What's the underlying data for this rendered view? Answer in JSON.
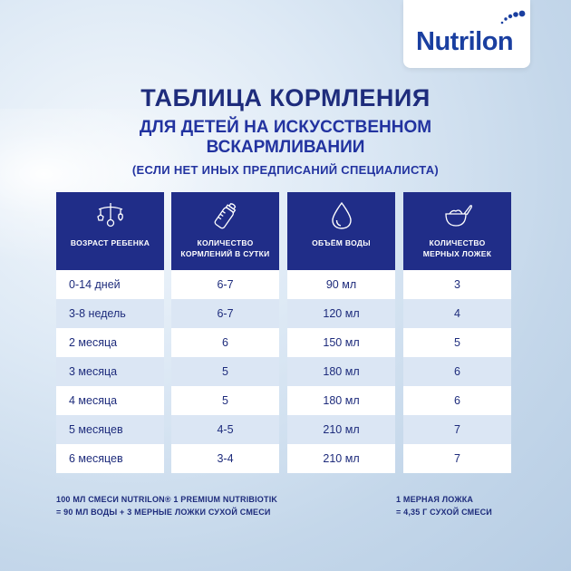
{
  "brand": {
    "logo_text": "Nutrilon"
  },
  "heading": {
    "title": "ТАБЛИЦА КОРМЛЕНИЯ",
    "subtitle_line1": "ДЛЯ ДЕТЕЙ НА ИСКУССТВЕННОМ",
    "subtitle_line2": "ВСКАРМЛИВАНИИ",
    "note": "(ЕСЛИ НЕТ ИНЫХ ПРЕДПИСАНИЙ СПЕЦИАЛИСТА)"
  },
  "table": {
    "columns": [
      {
        "icon": "baby-mobile-icon",
        "label_line1": "ВОЗРАСТ РЕБЕНКА",
        "label_line2": ""
      },
      {
        "icon": "baby-bottle-icon",
        "label_line1": "КОЛИЧЕСТВО",
        "label_line2": "КОРМЛЕНИЙ В СУТКИ"
      },
      {
        "icon": "water-drop-icon",
        "label_line1": "ОБЪЁМ ВОДЫ",
        "label_line2": ""
      },
      {
        "icon": "measuring-spoon-icon",
        "label_line1": "КОЛИЧЕСТВО",
        "label_line2": "МЕРНЫХ ЛОЖЕК"
      }
    ],
    "rows": [
      {
        "age": "0-14 дней",
        "feedings": "6-7",
        "water": "90 мл",
        "scoops": "3"
      },
      {
        "age": "3-8 недель",
        "feedings": "6-7",
        "water": "120 мл",
        "scoops": "4"
      },
      {
        "age": "2 месяца",
        "feedings": "6",
        "water": "150 мл",
        "scoops": "5"
      },
      {
        "age": "3 месяца",
        "feedings": "5",
        "water": "180 мл",
        "scoops": "6"
      },
      {
        "age": "4 месяца",
        "feedings": "5",
        "water": "180 мл",
        "scoops": "6"
      },
      {
        "age": "5 месяцев",
        "feedings": "4-5",
        "water": "210 мл",
        "scoops": "7"
      },
      {
        "age": "6 месяцев",
        "feedings": "3-4",
        "water": "210 мл",
        "scoops": "7"
      }
    ]
  },
  "footer": {
    "left_line1": "100 МЛ СМЕСИ NUTRILON® 1 PREMIUM NUTRIBIOTIK",
    "left_line2": "= 90 МЛ ВОДЫ + 3 МЕРНЫЕ ЛОЖКИ СУХОЙ СМЕСИ",
    "right_line1": "1 МЕРНАЯ ЛОЖКА",
    "right_line2": "= 4,35 Г СУХОЙ СМЕСИ"
  },
  "colors": {
    "header_bg": "#202d88",
    "text_dark": "#1e2c7c",
    "row_alt": "#dbe6f4",
    "brand": "#1a3fa0"
  }
}
